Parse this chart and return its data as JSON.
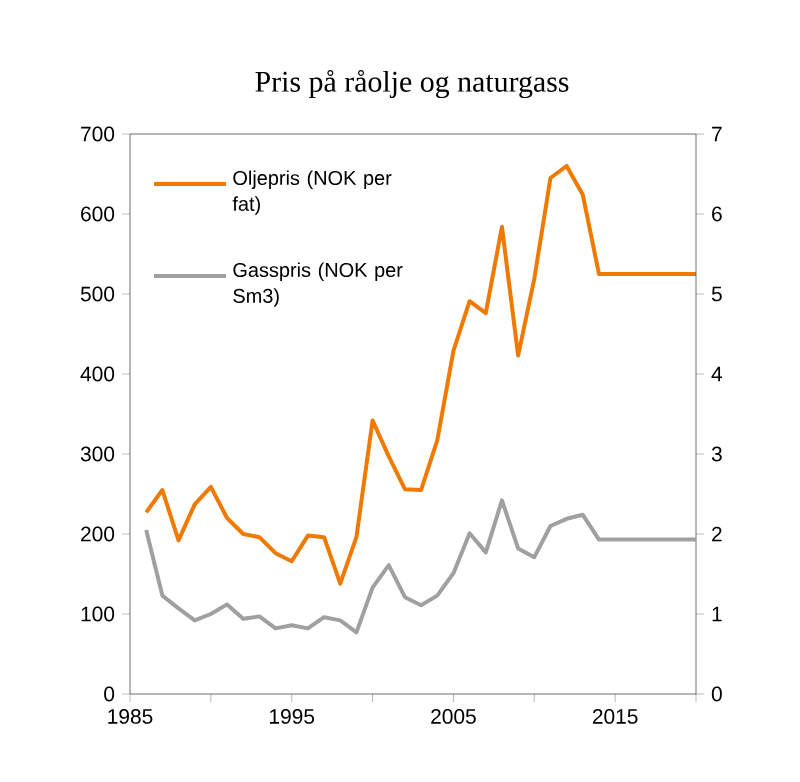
{
  "chart_data": {
    "type": "line",
    "title": "Pris på råolje og naturgass",
    "x": [
      1986,
      1987,
      1988,
      1989,
      1990,
      1991,
      1992,
      1993,
      1994,
      1995,
      1996,
      1997,
      1998,
      1999,
      2000,
      2001,
      2002,
      2003,
      2004,
      2005,
      2006,
      2007,
      2008,
      2009,
      2010,
      2011,
      2012,
      2013,
      2014,
      2015,
      2016,
      2017,
      2018,
      2019,
      2020
    ],
    "series": [
      {
        "name": "Oljepris (NOK per fat)",
        "color": "#f07a00",
        "values": [
          227,
          255,
          192,
          237,
          259,
          220,
          200,
          196,
          176,
          166,
          198,
          196,
          138,
          196,
          342,
          297,
          256,
          255,
          317,
          429,
          491,
          476,
          584,
          423,
          519,
          645,
          660,
          624,
          525,
          525,
          525,
          525,
          525,
          525,
          525
        ]
      },
      {
        "name": "Gasspris (NOK per Sm3)",
        "color": "#a0a0a0",
        "axis": "y2",
        "values": [
          2.05,
          1.23,
          1.07,
          0.92,
          1.0,
          1.12,
          0.94,
          0.97,
          0.82,
          0.86,
          0.82,
          0.96,
          0.92,
          0.77,
          1.33,
          1.61,
          1.21,
          1.11,
          1.23,
          1.51,
          2.01,
          1.77,
          2.42,
          1.82,
          1.71,
          2.1,
          2.19,
          2.24,
          1.93,
          1.93,
          1.93,
          1.93,
          1.93,
          1.93,
          1.93
        ]
      }
    ],
    "xlim": [
      1985,
      2020
    ],
    "xticks": [
      1985,
      {
        "value": 1990,
        "label": null
      },
      1995,
      {
        "value": 2000,
        "label": null
      },
      2005,
      {
        "value": 2010,
        "label": null
      },
      2015,
      {
        "value": 2020,
        "label": null
      }
    ],
    "ylim": [
      0,
      700
    ],
    "yticks": [
      0,
      100,
      200,
      300,
      400,
      500,
      600,
      700
    ],
    "y2lim": [
      0,
      7
    ],
    "y2ticks": [
      0,
      1,
      2,
      3,
      4,
      5,
      6,
      7
    ],
    "legend": "top left",
    "grid": false,
    "marker": "none",
    "line_style": "solid"
  }
}
